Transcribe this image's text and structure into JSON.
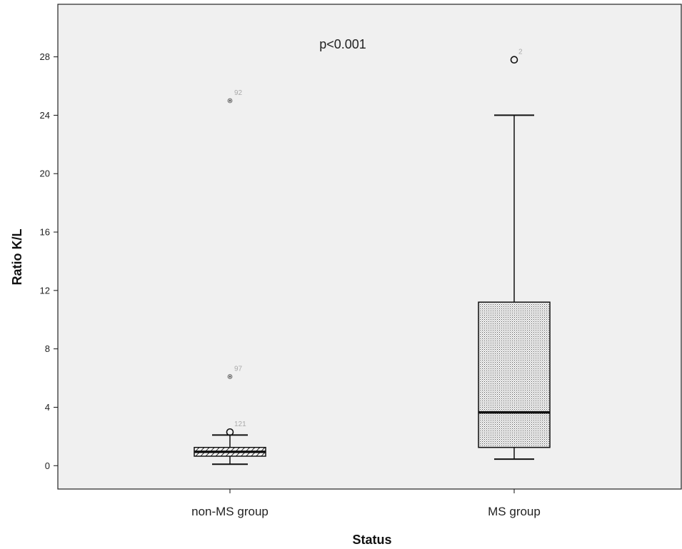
{
  "chart_data": {
    "type": "box",
    "xlabel": "Status",
    "ylabel": "Ratio K/L",
    "annotation": "p<0.001",
    "ylim": [
      -1.6,
      31.6
    ],
    "yticks": [
      0,
      4,
      8,
      12,
      16,
      20,
      24,
      28
    ],
    "categories": [
      "non-MS group",
      "MS group"
    ],
    "boxes": [
      {
        "category": "non-MS group",
        "whisker_low": 0.1,
        "q1": 0.65,
        "median": 0.95,
        "q3": 1.25,
        "whisker_high": 2.1,
        "pattern": "hatch",
        "outliers": [
          {
            "value": 2.3,
            "label": "121",
            "kind": "circle"
          },
          {
            "value": 6.1,
            "label": "97",
            "kind": "star"
          },
          {
            "value": 25.0,
            "label": "92",
            "kind": "star"
          }
        ]
      },
      {
        "category": "MS group",
        "whisker_low": 0.45,
        "q1": 1.25,
        "median": 3.65,
        "q3": 11.2,
        "whisker_high": 24.0,
        "pattern": "dots",
        "outliers": [
          {
            "value": 27.8,
            "label": "2",
            "kind": "circle"
          }
        ]
      }
    ],
    "grid": false,
    "colors": {
      "plot_bg": "#f0f0f0",
      "lines": "#111111",
      "outlier_label": "#aaaaaa"
    }
  }
}
